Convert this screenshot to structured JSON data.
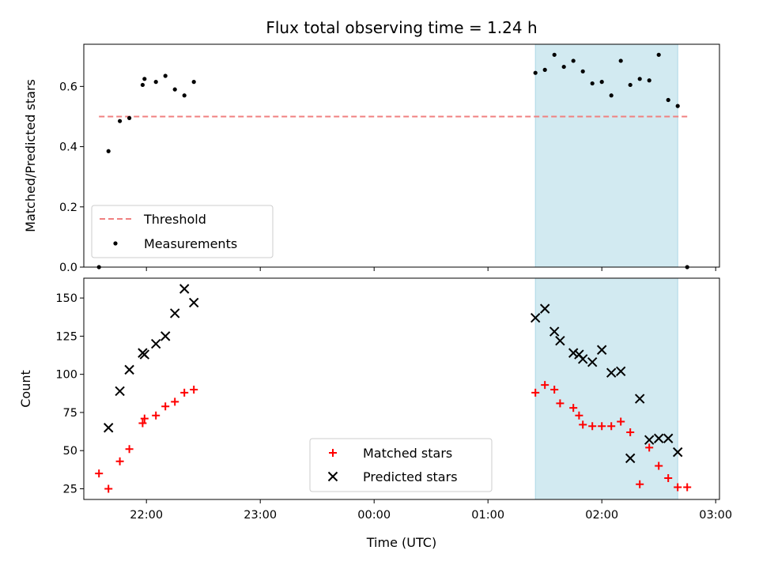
{
  "title": "Flux total observing time = 1.24 h",
  "colors": {
    "threshold": "#f08080",
    "measurement": "#000000",
    "matched": "#ff0000",
    "predicted": "#000000",
    "shade": "#add8e6"
  },
  "chart_data": [
    {
      "type": "scatter",
      "panel": "top",
      "ylabel": "Matched/Predicted stars",
      "xlabel": "",
      "xlim": [
        "21:27",
        "03:02"
      ],
      "ylim": [
        0,
        0.74
      ],
      "yticks": [
        0.0,
        0.2,
        0.4,
        0.6
      ],
      "ytick_labels": [
        "0.0",
        "0.2",
        "0.4",
        "0.6"
      ],
      "xticks": [
        "22:00",
        "23:00",
        "00:00",
        "01:00",
        "02:00",
        "03:00"
      ],
      "xtick_labels": [],
      "shaded_interval": [
        "01:25",
        "02:40"
      ],
      "legend_position": "lower-left",
      "series": [
        {
          "name": "Threshold",
          "style": "dashed-line",
          "x": [
            "21:35",
            "02:45"
          ],
          "y": [
            0.5,
            0.5
          ]
        },
        {
          "name": "Measurements",
          "style": "dot",
          "x": [
            "21:35",
            "21:40",
            "21:46",
            "21:51",
            "21:58",
            "21:59",
            "22:05",
            "22:10",
            "22:15",
            "22:20",
            "22:25",
            "01:25",
            "01:30",
            "01:35",
            "01:40",
            "01:45",
            "01:50",
            "01:55",
            "02:00",
            "02:05",
            "02:10",
            "02:15",
            "02:20",
            "02:25",
            "02:30",
            "02:35",
            "02:40",
            "02:45"
          ],
          "y": [
            0.0,
            0.385,
            0.485,
            0.495,
            0.605,
            0.625,
            0.615,
            0.635,
            0.59,
            0.57,
            0.615,
            0.645,
            0.655,
            0.705,
            0.665,
            0.685,
            0.65,
            0.61,
            0.615,
            0.57,
            0.685,
            0.605,
            0.625,
            0.62,
            0.705,
            0.555,
            0.535,
            0.0
          ]
        }
      ]
    },
    {
      "type": "scatter",
      "panel": "bottom",
      "ylabel": "Count",
      "xlabel": "Time (UTC)",
      "xlim": [
        "21:27",
        "03:02"
      ],
      "ylim": [
        18,
        163
      ],
      "yticks": [
        25,
        50,
        75,
        100,
        125,
        150
      ],
      "ytick_labels": [
        "25",
        "50",
        "75",
        "100",
        "125",
        "150"
      ],
      "xticks": [
        "22:00",
        "23:00",
        "00:00",
        "01:00",
        "02:00",
        "03:00"
      ],
      "xtick_labels": [
        "22:00",
        "23:00",
        "00:00",
        "01:00",
        "02:00",
        "03:00"
      ],
      "shaded_interval": [
        "01:25",
        "02:40"
      ],
      "legend_position": "lower-center",
      "series": [
        {
          "name": "Matched stars",
          "style": "plus",
          "x": [
            "21:35",
            "21:40",
            "21:46",
            "21:51",
            "21:58",
            "21:59",
            "22:05",
            "22:10",
            "22:15",
            "22:20",
            "22:25",
            "01:25",
            "01:30",
            "01:35",
            "01:38",
            "01:45",
            "01:48",
            "01:50",
            "01:55",
            "02:00",
            "02:05",
            "02:10",
            "02:15",
            "02:20",
            "02:25",
            "02:30",
            "02:35",
            "02:40",
            "02:45"
          ],
          "y": [
            35,
            25,
            43,
            51,
            68,
            71,
            73,
            79,
            82,
            88,
            90,
            88,
            93,
            90,
            81,
            78,
            73,
            67,
            66,
            66,
            66,
            69,
            62,
            28,
            52,
            40,
            32,
            26,
            26
          ]
        },
        {
          "name": "Predicted stars",
          "style": "x",
          "x": [
            "21:40",
            "21:46",
            "21:51",
            "21:58",
            "21:59",
            "22:05",
            "22:10",
            "22:15",
            "22:20",
            "22:25",
            "01:25",
            "01:30",
            "01:35",
            "01:38",
            "01:45",
            "01:48",
            "01:50",
            "01:55",
            "02:00",
            "02:05",
            "02:10",
            "02:15",
            "02:20",
            "02:25",
            "02:30",
            "02:35",
            "02:40"
          ],
          "y": [
            65,
            89,
            103,
            114,
            113,
            120,
            125,
            140,
            156,
            147,
            137,
            143,
            128,
            122,
            114,
            113,
            110,
            108,
            116,
            101,
            102,
            45,
            84,
            57,
            58,
            58,
            49
          ]
        }
      ]
    }
  ]
}
